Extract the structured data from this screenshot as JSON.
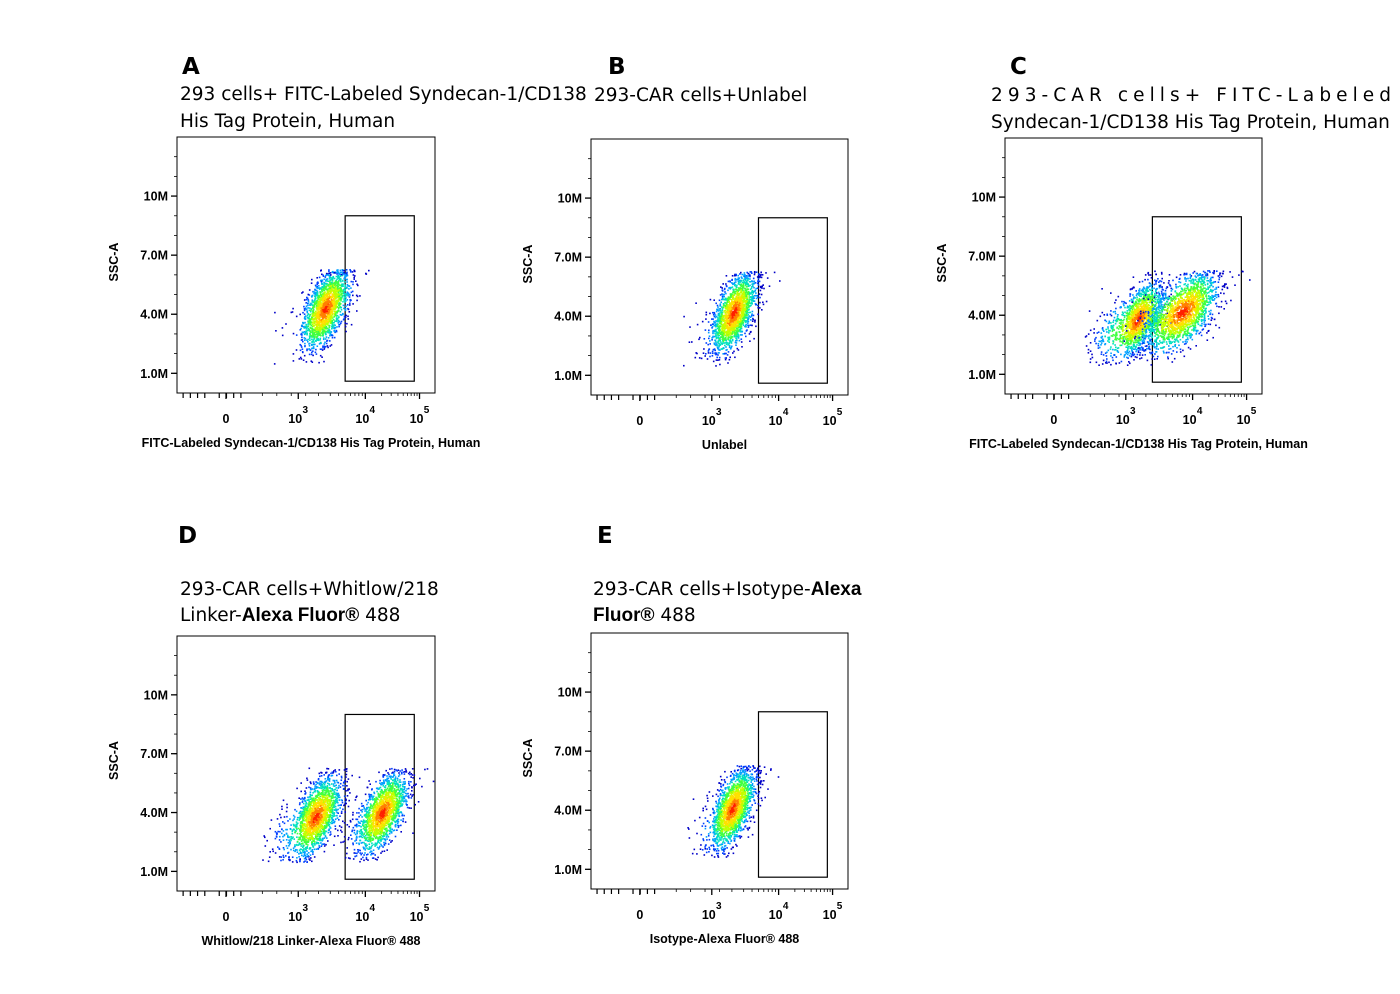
{
  "chart_data": [
    {
      "type": "scatter",
      "panel_letter": "A",
      "title_lines": [
        "293 cells+ FITC-Labeled Syndecan-1/CD138",
        "His Tag Protein, Human"
      ],
      "title_bold": [],
      "xlabel": "FITC-Labeled Syndecan-1/CD138 His Tag Protein, Human",
      "ylabel": "SSC-A",
      "x_scale": "biexponential",
      "yticks": [
        "10M",
        "7.0M",
        "4.0M",
        "1.0M"
      ],
      "ytick_values": [
        10000000,
        7000000,
        4000000,
        1000000
      ],
      "xticks": [
        "0",
        "10",
        "10",
        "10"
      ],
      "xtick_exponents": [
        "",
        "3",
        "4",
        "5"
      ],
      "xtick_values": [
        0,
        1000,
        10000,
        100000
      ],
      "ylim": [
        0,
        13000000
      ],
      "gate": {
        "x_range": [
          5000,
          80000
        ],
        "y_range": [
          600000,
          9000000
        ]
      },
      "populations": [
        {
          "x_center": 2500,
          "y_center": 4300000,
          "x_spread": 0.17,
          "y_spread": 1000000,
          "n": 1800
        }
      ]
    },
    {
      "type": "scatter",
      "panel_letter": "B",
      "title_lines": [
        "293-CAR cells+Unlabel"
      ],
      "title_bold": [],
      "xlabel": "Unlabel",
      "ylabel": "SSC-A",
      "x_scale": "biexponential",
      "yticks": [
        "10M",
        "7.0M",
        "4.0M",
        "1.0M"
      ],
      "ytick_values": [
        10000000,
        7000000,
        4000000,
        1000000
      ],
      "xticks": [
        "0",
        "10",
        "10",
        "10"
      ],
      "xtick_exponents": [
        "",
        "3",
        "4",
        "5"
      ],
      "xtick_values": [
        0,
        1000,
        10000,
        100000
      ],
      "ylim": [
        0,
        13000000
      ],
      "gate": {
        "x_range": [
          5000,
          80000
        ],
        "y_range": [
          600000,
          9000000
        ]
      },
      "populations": [
        {
          "x_center": 2100,
          "y_center": 4200000,
          "x_spread": 0.16,
          "y_spread": 1000000,
          "n": 1800
        }
      ]
    },
    {
      "type": "scatter",
      "panel_letter": "C",
      "title_lines": [
        "293-CAR           cells+            FITC-Labeled",
        "Syndecan-1/CD138 His Tag Protein, Human"
      ],
      "title_bold": [],
      "xlabel": "FITC-Labeled Syndecan-1/CD138 His Tag Protein, Human",
      "ylabel": "SSC-A",
      "x_scale": "biexponential",
      "yticks": [
        "10M",
        "7.0M",
        "4.0M",
        "1.0M"
      ],
      "ytick_values": [
        10000000,
        7000000,
        4000000,
        1000000
      ],
      "xticks": [
        "0",
        "10",
        "10",
        "10"
      ],
      "xtick_exponents": [
        "",
        "3",
        "4",
        "5"
      ],
      "xtick_values": [
        0,
        1000,
        10000,
        100000
      ],
      "ylim": [
        0,
        13000000
      ],
      "gate": {
        "x_range": [
          2500,
          80000
        ],
        "y_range": [
          600000,
          9000000
        ]
      },
      "populations": [
        {
          "x_center": 1500,
          "y_center": 3800000,
          "x_spread": 0.18,
          "y_spread": 900000,
          "n": 1600
        },
        {
          "x_center": 7000,
          "y_center": 4200000,
          "x_spread": 0.28,
          "y_spread": 1000000,
          "n": 1800
        }
      ]
    },
    {
      "type": "scatter",
      "panel_letter": "D",
      "title_lines": [
        "293-CAR   cells+Whitlow/218",
        "Linker-|Alexa Fluor®| 488"
      ],
      "title_bold": [
        "Alexa Fluor®"
      ],
      "xlabel": "Whitlow/218 Linker-Alexa Fluor® 488",
      "ylabel": "SSC-A",
      "x_scale": "biexponential",
      "yticks": [
        "10M",
        "7.0M",
        "4.0M",
        "1.0M"
      ],
      "ytick_values": [
        10000000,
        7000000,
        4000000,
        1000000
      ],
      "xticks": [
        "0",
        "10",
        "10",
        "10"
      ],
      "xtick_exponents": [
        "",
        "3",
        "4",
        "5"
      ],
      "xtick_values": [
        0,
        1000,
        10000,
        100000
      ],
      "ylim": [
        0,
        13000000
      ],
      "gate": {
        "x_range": [
          5000,
          80000
        ],
        "y_range": [
          600000,
          9000000
        ]
      },
      "populations": [
        {
          "x_center": 1800,
          "y_center": 3800000,
          "x_spread": 0.18,
          "y_spread": 1000000,
          "n": 1800
        },
        {
          "x_center": 20000,
          "y_center": 4000000,
          "x_spread": 0.22,
          "y_spread": 1000000,
          "n": 1700
        }
      ]
    },
    {
      "type": "scatter",
      "panel_letter": "E",
      "title_lines": [
        "293-CAR cells+Isotype-|Alexa",
        "|Fluor®| 488"
      ],
      "title_bold": [
        "Alexa",
        "Fluor®"
      ],
      "xlabel": "Isotype-Alexa Fluor® 488",
      "ylabel": "SSC-A",
      "x_scale": "biexponential",
      "yticks": [
        "10M",
        "7.0M",
        "4.0M",
        "1.0M"
      ],
      "ytick_values": [
        10000000,
        7000000,
        4000000,
        1000000
      ],
      "xticks": [
        "0",
        "10",
        "10",
        "10"
      ],
      "xtick_exponents": [
        "",
        "3",
        "4",
        "5"
      ],
      "xtick_values": [
        0,
        1000,
        10000,
        100000
      ],
      "ylim": [
        0,
        13000000
      ],
      "gate": {
        "x_range": [
          5000,
          80000
        ],
        "y_range": [
          600000,
          9000000
        ]
      },
      "populations": [
        {
          "x_center": 2000,
          "y_center": 4100000,
          "x_spread": 0.16,
          "y_spread": 1000000,
          "n": 1800
        }
      ]
    }
  ]
}
